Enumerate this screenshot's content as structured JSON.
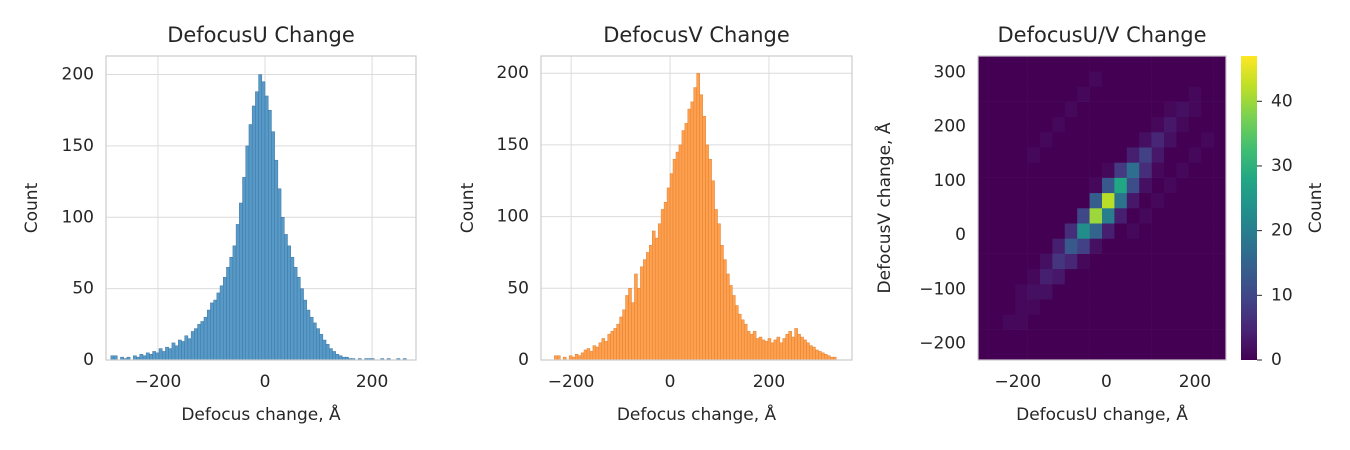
{
  "chart_data": [
    {
      "type": "histogram",
      "title": "DefocusU Change",
      "x_label": "Defocus change, Å",
      "y_label": "Count",
      "color": "#5799c7",
      "edge_color": "#3f78a6",
      "grid": true,
      "bins": [
        -288,
        -282,
        -276,
        -270,
        -264,
        -258,
        -252,
        -246,
        -240,
        -234,
        -228,
        -222,
        -216,
        -210,
        -204,
        -198,
        -192,
        -186,
        -180,
        -174,
        -168,
        -162,
        -156,
        -150,
        -144,
        -138,
        -132,
        -126,
        -120,
        -114,
        -108,
        -102,
        -96,
        -90,
        -84,
        -78,
        -72,
        -66,
        -60,
        -54,
        -48,
        -42,
        -36,
        -30,
        -24,
        -18,
        -12,
        -6,
        0,
        6,
        12,
        18,
        24,
        30,
        36,
        42,
        48,
        54,
        60,
        66,
        72,
        78,
        84,
        90,
        96,
        102,
        108,
        114,
        120,
        126,
        132,
        138,
        144,
        150,
        156,
        162,
        168,
        174,
        180,
        186,
        192,
        198,
        204,
        210,
        216,
        222,
        228,
        234,
        240,
        246,
        252,
        258,
        264
      ],
      "values": [
        3,
        3,
        0,
        2,
        1,
        2,
        0,
        3,
        2,
        4,
        3,
        5,
        4,
        6,
        5,
        8,
        6,
        9,
        8,
        12,
        10,
        14,
        13,
        17,
        15,
        20,
        22,
        25,
        27,
        30,
        35,
        40,
        42,
        47,
        52,
        58,
        65,
        72,
        80,
        95,
        110,
        128,
        150,
        165,
        178,
        188,
        200,
        195,
        185,
        175,
        160,
        140,
        120,
        100,
        88,
        80,
        72,
        65,
        58,
        50,
        42,
        35,
        30,
        26,
        22,
        18,
        14,
        11,
        8,
        6,
        4,
        3,
        2,
        2,
        1,
        1,
        0,
        1,
        0,
        1,
        1,
        1,
        0,
        0,
        1,
        0,
        1,
        0,
        0,
        1,
        0,
        1
      ],
      "xlim": [
        -297,
        282
      ],
      "ylim": [
        0,
        213
      ],
      "xticks": [
        {
          "value": -200,
          "label": "−200"
        },
        0,
        200
      ],
      "yticks": [
        0,
        50,
        100,
        150,
        200
      ]
    },
    {
      "type": "histogram",
      "title": "DefocusV Change",
      "x_label": "Defocus change, Å",
      "y_label": "Count",
      "color": "#ffa04f",
      "edge_color": "#e08030",
      "grid": true,
      "bins": [
        -234,
        -228,
        -222,
        -216,
        -210,
        -204,
        -198,
        -192,
        -186,
        -180,
        -174,
        -168,
        -162,
        -156,
        -150,
        -144,
        -138,
        -132,
        -126,
        -120,
        -114,
        -108,
        -102,
        -96,
        -90,
        -84,
        -78,
        -72,
        -66,
        -60,
        -54,
        -48,
        -42,
        -36,
        -30,
        -24,
        -18,
        -12,
        -6,
        0,
        6,
        12,
        18,
        24,
        30,
        36,
        42,
        48,
        54,
        60,
        66,
        72,
        78,
        84,
        90,
        96,
        102,
        108,
        114,
        120,
        126,
        132,
        138,
        144,
        150,
        156,
        162,
        168,
        174,
        180,
        186,
        192,
        198,
        204,
        210,
        216,
        222,
        228,
        234,
        240,
        246,
        252,
        258,
        264,
        270,
        276,
        282,
        288,
        294,
        300,
        306,
        312,
        318,
        324,
        330,
        336
      ],
      "values": [
        3,
        3,
        0,
        2,
        0,
        3,
        2,
        4,
        3,
        5,
        7,
        8,
        6,
        10,
        9,
        12,
        15,
        13,
        18,
        20,
        22,
        25,
        30,
        35,
        45,
        50,
        40,
        60,
        50,
        65,
        70,
        75,
        80,
        90,
        85,
        95,
        105,
        110,
        120,
        130,
        140,
        145,
        150,
        160,
        165,
        175,
        180,
        190,
        200,
        185,
        170,
        150,
        140,
        125,
        105,
        95,
        80,
        70,
        60,
        52,
        45,
        38,
        32,
        28,
        25,
        20,
        18,
        20,
        15,
        16,
        14,
        13,
        15,
        12,
        14,
        16,
        12,
        15,
        18,
        20,
        16,
        22,
        18,
        16,
        14,
        12,
        10,
        9,
        7,
        6,
        5,
        4,
        3,
        2,
        2
      ],
      "xlim": [
        -261,
        368
      ],
      "ylim": [
        0,
        212
      ],
      "xticks": [
        {
          "value": -200,
          "label": "−200"
        },
        0,
        200
      ],
      "yticks": [
        0,
        50,
        100,
        150,
        200
      ]
    },
    {
      "type": "heatmap",
      "title": "DefocusU/V Change",
      "x_label": "DefocusU change, Å",
      "y_label": "DefocusV change, Å",
      "x_bins": [
        -290,
        -262,
        -234,
        -206,
        -178,
        -150,
        -122,
        -94,
        -66,
        -38,
        -10,
        18,
        46,
        74,
        102,
        130,
        158,
        186,
        214,
        242,
        270
      ],
      "y_bins": [
        -230,
        -202,
        -174,
        -146,
        -118,
        -90,
        -62,
        -34,
        -6,
        22,
        50,
        78,
        106,
        134,
        162,
        190,
        218,
        246,
        274,
        302,
        330
      ],
      "z": [
        [
          0,
          0,
          0,
          0,
          0,
          0,
          0,
          0,
          0,
          0,
          0,
          0,
          0,
          0,
          0,
          0,
          0,
          0,
          0,
          0
        ],
        [
          0,
          0,
          0,
          0,
          0,
          0,
          0,
          0,
          0,
          0,
          0,
          0,
          0,
          0,
          0,
          0,
          0,
          0,
          0,
          0
        ],
        [
          0,
          0,
          1,
          1,
          0,
          0,
          0,
          0,
          0,
          0,
          0,
          0,
          0,
          0,
          0,
          0,
          0,
          0,
          0,
          0
        ],
        [
          0,
          0,
          0,
          1,
          1,
          0,
          0,
          0,
          0,
          0,
          0,
          0,
          0,
          0,
          0,
          0,
          0,
          0,
          0,
          0
        ],
        [
          0,
          0,
          0,
          1,
          2,
          2,
          0,
          0,
          0,
          0,
          0,
          0,
          0,
          0,
          0,
          0,
          0,
          0,
          0,
          0
        ],
        [
          0,
          0,
          0,
          0,
          1,
          4,
          3,
          0,
          0,
          0,
          0,
          0,
          0,
          0,
          0,
          0,
          0,
          0,
          0,
          0
        ],
        [
          0,
          0,
          0,
          0,
          0,
          2,
          7,
          5,
          1,
          0,
          0,
          0,
          0,
          0,
          0,
          0,
          0,
          0,
          0,
          0
        ],
        [
          0,
          0,
          0,
          0,
          0,
          0,
          4,
          13,
          9,
          2,
          0,
          0,
          0,
          0,
          0,
          0,
          0,
          0,
          0,
          0
        ],
        [
          0,
          0,
          0,
          0,
          0,
          0,
          0,
          6,
          23,
          15,
          4,
          0,
          1,
          0,
          0,
          0,
          0,
          0,
          0,
          0
        ],
        [
          0,
          0,
          0,
          0,
          0,
          0,
          0,
          0,
          10,
          40,
          20,
          4,
          0,
          1,
          0,
          0,
          0,
          0,
          0,
          0
        ],
        [
          0,
          0,
          0,
          0,
          0,
          0,
          0,
          0,
          0,
          14,
          42,
          18,
          3,
          0,
          1,
          0,
          0,
          0,
          0,
          0
        ],
        [
          0,
          0,
          0,
          0,
          0,
          0,
          0,
          0,
          0,
          1,
          13,
          28,
          11,
          2,
          0,
          1,
          0,
          0,
          0,
          0
        ],
        [
          0,
          0,
          0,
          0,
          0,
          0,
          0,
          0,
          0,
          0,
          1,
          8,
          17,
          6,
          1,
          0,
          1,
          0,
          0,
          0
        ],
        [
          0,
          0,
          0,
          0,
          1,
          0,
          0,
          0,
          0,
          0,
          0,
          0,
          4,
          9,
          3,
          0,
          0,
          1,
          0,
          0
        ],
        [
          0,
          0,
          0,
          0,
          0,
          1,
          0,
          0,
          0,
          0,
          0,
          0,
          0,
          2,
          5,
          2,
          0,
          0,
          1,
          0
        ],
        [
          0,
          0,
          0,
          0,
          0,
          0,
          1,
          0,
          0,
          0,
          0,
          0,
          0,
          0,
          1,
          3,
          1,
          0,
          0,
          0
        ],
        [
          0,
          0,
          0,
          0,
          0,
          0,
          0,
          1,
          0,
          0,
          0,
          0,
          0,
          0,
          0,
          1,
          2,
          1,
          0,
          0
        ],
        [
          0,
          0,
          0,
          0,
          0,
          0,
          0,
          0,
          1,
          0,
          0,
          0,
          0,
          0,
          0,
          0,
          0,
          1,
          0,
          0
        ],
        [
          0,
          0,
          0,
          0,
          0,
          0,
          0,
          0,
          0,
          1,
          0,
          0,
          0,
          0,
          0,
          0,
          0,
          0,
          0,
          0
        ],
        [
          0,
          0,
          0,
          0,
          0,
          0,
          0,
          0,
          0,
          0,
          0,
          0,
          0,
          0,
          0,
          0,
          0,
          0,
          0,
          0
        ]
      ],
      "xlim": [
        -290,
        270
      ],
      "ylim": [
        -230,
        330
      ],
      "xticks": [
        {
          "value": -200,
          "label": "−200"
        },
        0,
        200
      ],
      "yticks": [
        {
          "value": -200,
          "label": "−200"
        },
        {
          "value": -100,
          "label": "−100"
        },
        0,
        100,
        200,
        300
      ],
      "colorbar": {
        "label": "Count",
        "lim": [
          0,
          47
        ],
        "ticks": [
          0,
          10,
          20,
          30,
          40
        ],
        "colors": [
          "#440154",
          "#482475",
          "#414487",
          "#355f8d",
          "#2a788e",
          "#21918c",
          "#22a884",
          "#44bf70",
          "#7ad151",
          "#bddf26",
          "#fde725"
        ]
      }
    }
  ]
}
